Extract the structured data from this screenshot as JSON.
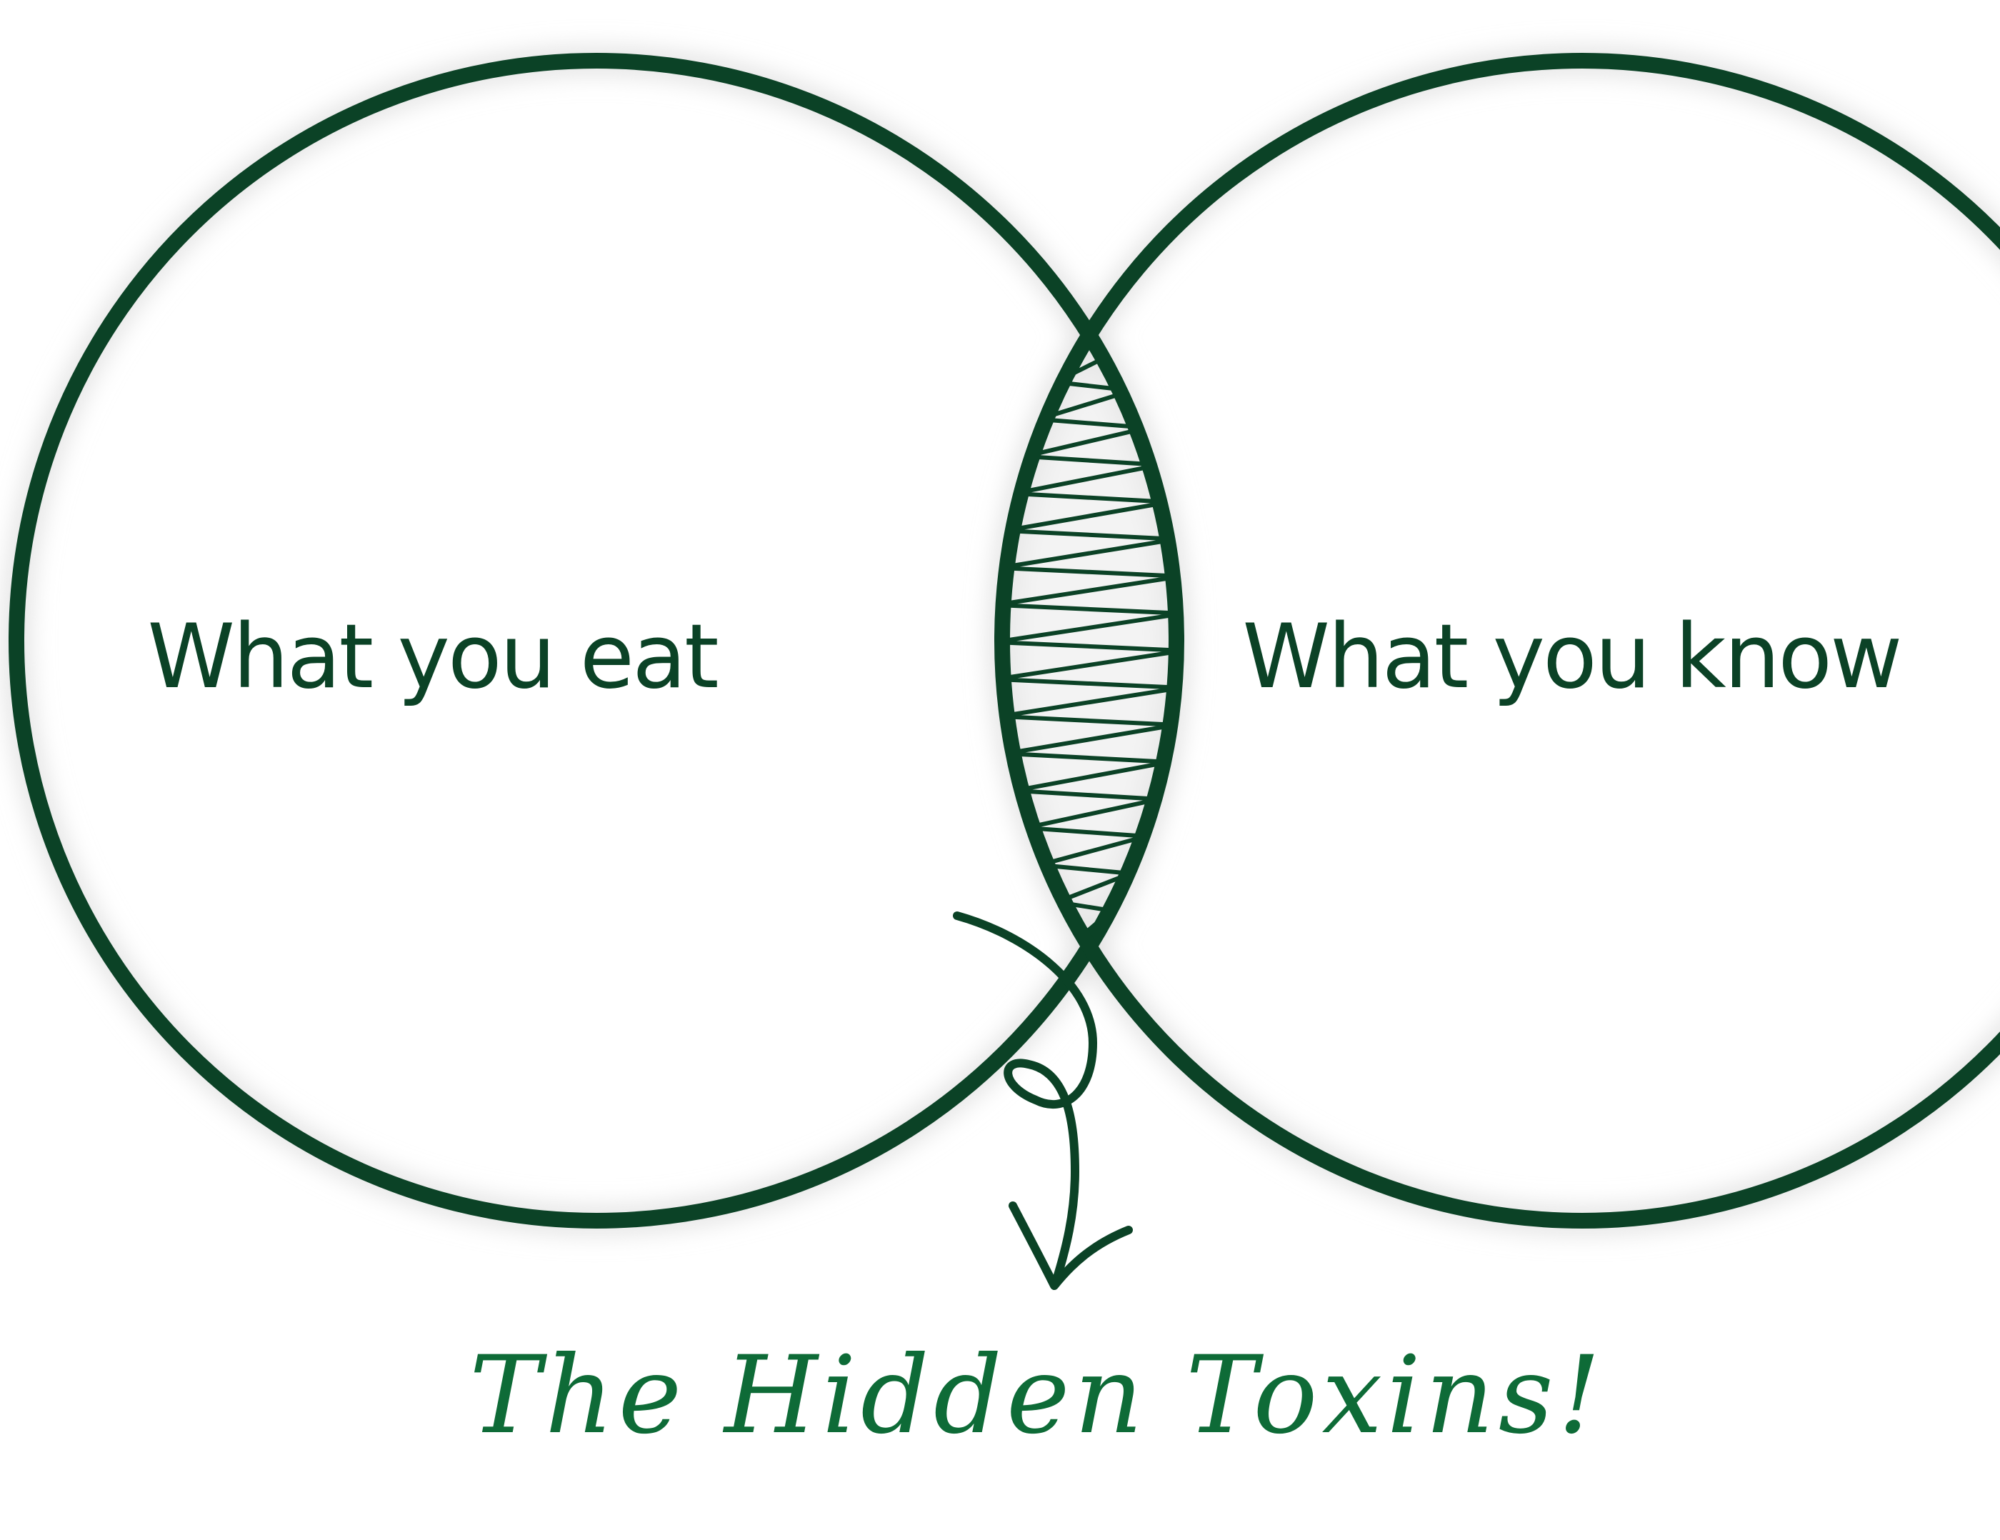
{
  "colors": {
    "background": "#ffffff",
    "stroke": "#0b4226",
    "label": "#0b4226",
    "callout": "#0e6b37",
    "glow": "#d9d9d9"
  },
  "diagram": {
    "type": "venn-two-set",
    "left_set": {
      "label": "What you eat"
    },
    "right_set": {
      "label": "What you know"
    },
    "intersection": {
      "fill": "hatched",
      "annotation": "The Hidden Toxins!",
      "annotation_style": "handwritten",
      "pointer": "curly-arrow"
    }
  }
}
